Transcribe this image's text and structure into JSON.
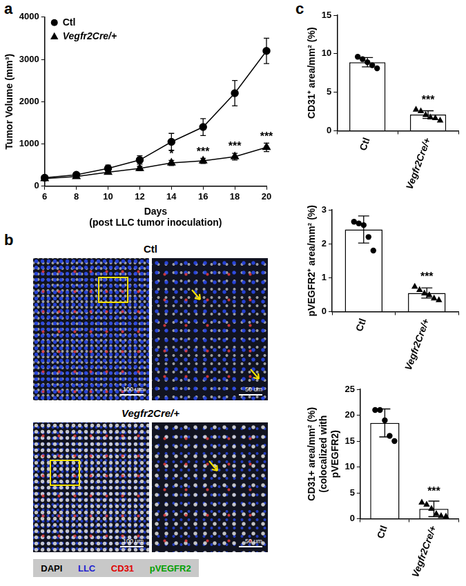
{
  "panel_labels": [
    "a",
    "b",
    "c"
  ],
  "chart_data": [
    {
      "type": "line",
      "x_label": [
        "Days",
        "(post LLC tumor inoculation)"
      ],
      "y_label": "Tumor Volume (mm³)",
      "x": [
        6,
        8,
        10,
        12,
        14,
        16,
        18,
        20
      ],
      "series": [
        {
          "name": "Ctl",
          "color": "#000000",
          "marker": "circle",
          "values": [
            200,
            270,
            420,
            620,
            1050,
            1400,
            2200,
            3200
          ],
          "errors": [
            50,
            50,
            80,
            100,
            200,
            200,
            300,
            300
          ]
        },
        {
          "name": "Vegfr2Cre/+",
          "color": "#000000",
          "marker": "triangle",
          "values": [
            180,
            230,
            330,
            420,
            550,
            600,
            700,
            920
          ],
          "errors": [
            30,
            30,
            40,
            50,
            60,
            60,
            80,
            100
          ]
        }
      ],
      "xlim": [
        6,
        20
      ],
      "xticks": [
        6,
        8,
        10,
        12,
        14,
        16,
        18,
        20
      ],
      "ylim": [
        0,
        4000
      ],
      "yticks": [
        0,
        1000,
        2000,
        3000,
        4000
      ],
      "legend": "top-left",
      "grid": false,
      "annotations": [
        {
          "series": "Vegfr2Cre/+",
          "x": 14,
          "text": "*"
        },
        {
          "series": "Vegfr2Cre/+",
          "x": 16,
          "text": "***"
        },
        {
          "series": "Vegfr2Cre/+",
          "x": 18,
          "text": "***"
        },
        {
          "series": "Vegfr2Cre/+",
          "x": 20,
          "text": "***"
        }
      ]
    },
    {
      "type": "bar",
      "y_label": "CD31⁺ area/mm² (%)",
      "categories": [
        "Ctl",
        "Vegfr2Cre/+"
      ],
      "values": [
        8.9,
        2.1
      ],
      "errors": [
        0.6,
        0.5
      ],
      "color": "#ffffff",
      "points": [
        {
          "marker": "circle",
          "color": "#000000",
          "values": [
            9.6,
            9.3,
            8.9,
            8.5,
            8.1
          ]
        },
        {
          "marker": "triangle",
          "color": "#000000",
          "values": [
            2.8,
            2.6,
            2.1,
            1.8,
            1.7,
            1.4
          ]
        }
      ],
      "ylim": [
        0,
        15
      ],
      "yticks": [
        0,
        5,
        10,
        15
      ],
      "grid": false,
      "annotations": [
        {
          "category": "Vegfr2Cre/+",
          "text": "***"
        }
      ]
    },
    {
      "type": "bar",
      "y_label": "pVEGFR2⁺ area/mm² (%)",
      "categories": [
        "Ctl",
        "Vegfr2Cre/+"
      ],
      "values": [
        2.42,
        0.55
      ],
      "errors": [
        0.4,
        0.15
      ],
      "color": "#ffffff",
      "points": [
        {
          "marker": "circle",
          "color": "#000000",
          "values": [
            2.65,
            2.6,
            2.55,
            2.2,
            1.8
          ]
        },
        {
          "marker": "triangle",
          "color": "#000000",
          "values": [
            0.75,
            0.65,
            0.55,
            0.5,
            0.4,
            0.35
          ]
        }
      ],
      "ylim": [
        0,
        3
      ],
      "yticks": [
        0,
        1,
        2,
        3
      ],
      "grid": false,
      "annotations": [
        {
          "category": "Vegfr2Cre/+",
          "text": "***"
        }
      ]
    },
    {
      "type": "bar",
      "y_label": [
        "CD31+ area/mm² (%)",
        "(colocalized with",
        "pVEGFR2)"
      ],
      "categories": [
        "Ctl",
        "Vegfr2Cre/+"
      ],
      "values": [
        18.5,
        1.9
      ],
      "errors": [
        2.7,
        1.5
      ],
      "color": "#ffffff",
      "points": [
        {
          "marker": "circle",
          "color": "#000000",
          "values": [
            21,
            21,
            19,
            16,
            15
          ]
        },
        {
          "marker": "triangle",
          "color": "#000000",
          "values": [
            3.2,
            2.8,
            2,
            1,
            0.6,
            0.5
          ]
        }
      ],
      "ylim": [
        0,
        25
      ],
      "yticks": [
        0,
        5,
        10,
        15,
        20,
        25
      ],
      "grid": false,
      "annotations": [
        {
          "category": "Vegfr2Cre/+",
          "text": "***"
        }
      ]
    }
  ],
  "micrographs": {
    "rows": [
      {
        "label": "Ctl",
        "scale_bars": [
          "100 um",
          "50 um"
        ]
      },
      {
        "label": "Vegfr2Cre/+",
        "scale_bars": [
          "100 um",
          "50 um"
        ]
      }
    ],
    "channels": [
      {
        "name": "DAPI",
        "color": "#000000"
      },
      {
        "name": "LLC",
        "color": "#1f1fd0"
      },
      {
        "name": "CD31",
        "color": "#e00000"
      },
      {
        "name": "pVEGFR2",
        "color": "#00a000"
      }
    ]
  }
}
